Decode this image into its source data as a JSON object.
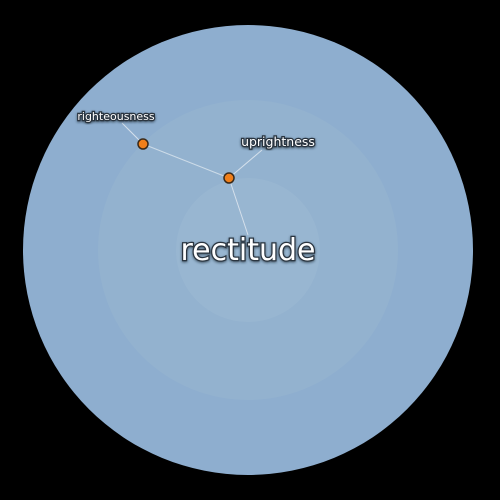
{
  "center": {
    "word": "rectitude"
  },
  "related": [
    {
      "word": "righteousness"
    },
    {
      "word": "uprightness"
    }
  ],
  "colors": {
    "background": "#000000",
    "outer_ring": "#8eaecf",
    "middle_ring": "#93b2cf",
    "inner_ring": "#98b6d1",
    "node_fill": "#f07f1a",
    "node_stroke": "#3a2a1a",
    "connector": "#dfe8f0"
  }
}
